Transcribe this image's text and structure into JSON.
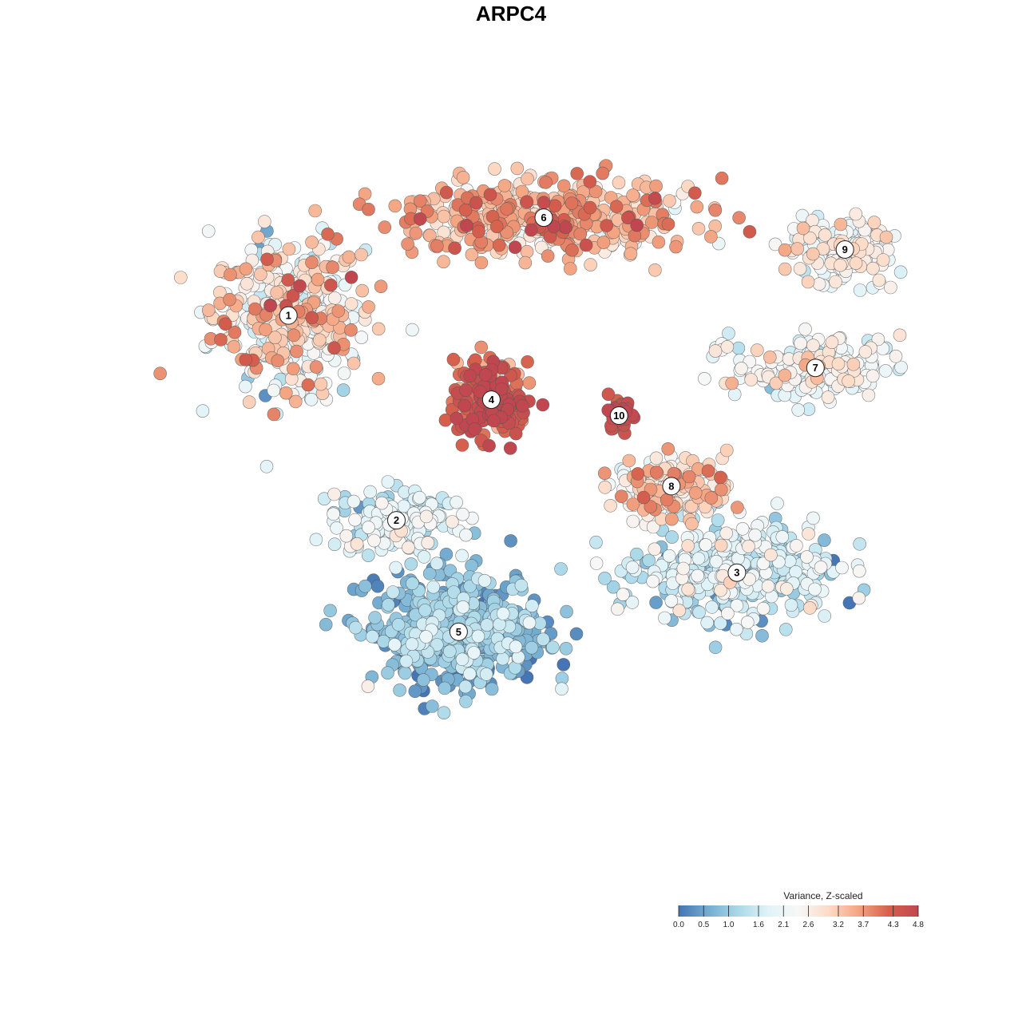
{
  "chart_data": {
    "type": "scatter",
    "title": "ARPC4",
    "xlabel": "",
    "ylabel": "",
    "grid": false,
    "legend_position": "bottom-right",
    "legend": {
      "title": "Variance, Z-scaled",
      "ticks": [
        "0.0",
        "0.5",
        "1.0",
        "1.6",
        "2.1",
        "2.6",
        "3.2",
        "3.7",
        "4.3",
        "4.8"
      ],
      "range": [
        0.0,
        4.8
      ],
      "colors": [
        "#4575b4",
        "#74add1",
        "#abd9e9",
        "#e0f3f8",
        "#f7f7f7",
        "#fddbc7",
        "#f4a582",
        "#d6604d",
        "#c0474f"
      ]
    },
    "clusters": [
      {
        "label": "1",
        "x": -6.8,
        "y": 4.1,
        "mean_value": 2.6
      },
      {
        "label": "2",
        "x": -3.5,
        "y": -4.9,
        "mean_value": 1.7
      },
      {
        "label": "3",
        "x": 6.9,
        "y": -7.2,
        "mean_value": 1.5
      },
      {
        "label": "4",
        "x": -0.6,
        "y": 0.4,
        "mean_value": 4.3
      },
      {
        "label": "5",
        "x": -1.6,
        "y": -9.8,
        "mean_value": 0.8
      },
      {
        "label": "6",
        "x": 1.0,
        "y": 8.4,
        "mean_value": 3.3
      },
      {
        "label": "7",
        "x": 9.3,
        "y": 1.8,
        "mean_value": 2.2
      },
      {
        "label": "8",
        "x": 4.9,
        "y": -3.4,
        "mean_value": 2.9
      },
      {
        "label": "9",
        "x": 10.2,
        "y": 7.0,
        "mean_value": 2.3
      },
      {
        "label": "10",
        "x": 3.3,
        "y": -0.3,
        "mean_value": 4.5
      }
    ]
  }
}
